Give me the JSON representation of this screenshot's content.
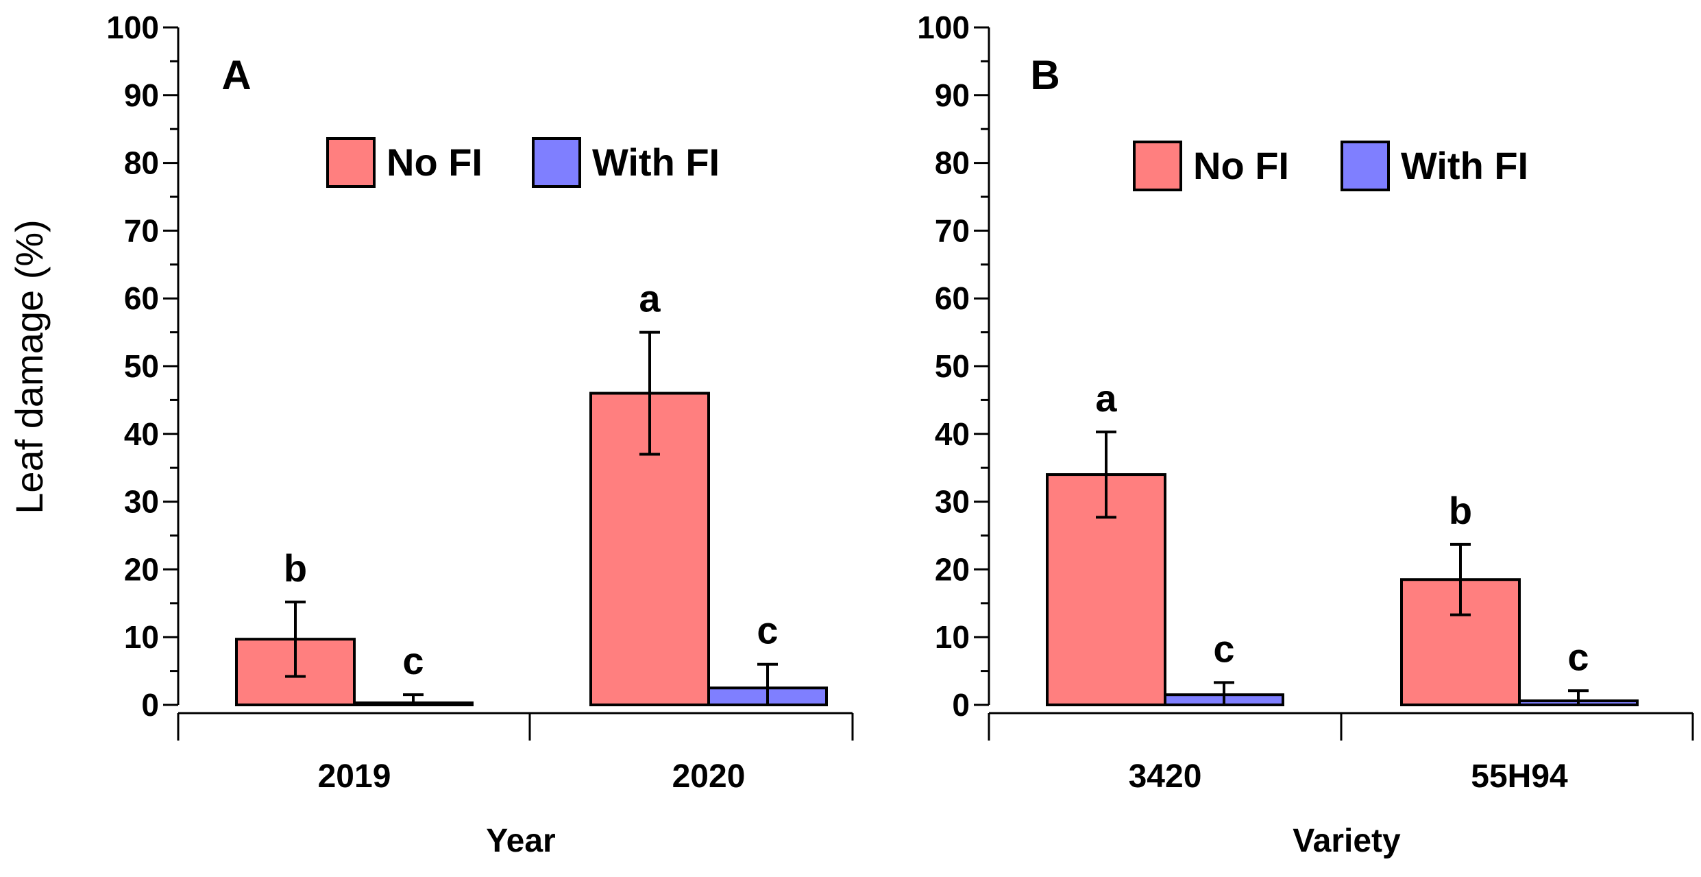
{
  "y_axis_label": "Leaf damage (%)",
  "chart_data": [
    {
      "type": "bar",
      "panel": "A",
      "title": "",
      "xlabel": "Year",
      "ylabel": "Leaf damage (%)",
      "ylim": [
        0,
        100
      ],
      "y_ticks": [
        0,
        10,
        20,
        30,
        40,
        50,
        60,
        70,
        80,
        90,
        100
      ],
      "categories": [
        "2019",
        "2020"
      ],
      "legend_position": "top-center",
      "series": [
        {
          "name": "No FI",
          "color": "#ff7f7f",
          "values": [
            9.7,
            46
          ],
          "error": [
            5.5,
            9
          ],
          "labels": [
            "b",
            "a"
          ]
        },
        {
          "name": "With FI",
          "color": "#7f7fff",
          "values": [
            0.3,
            2.5
          ],
          "error": [
            1.2,
            3.5
          ],
          "labels": [
            "c",
            "c"
          ]
        }
      ]
    },
    {
      "type": "bar",
      "panel": "B",
      "title": "",
      "xlabel": "Variety",
      "ylabel": "Leaf damage (%)",
      "ylim": [
        0,
        100
      ],
      "y_ticks": [
        0,
        10,
        20,
        30,
        40,
        50,
        60,
        70,
        80,
        90,
        100
      ],
      "categories": [
        "3420",
        "55H94"
      ],
      "legend_position": "top-center",
      "series": [
        {
          "name": "No FI",
          "color": "#ff7f7f",
          "values": [
            34,
            18.5
          ],
          "error": [
            6.3,
            5.2
          ],
          "labels": [
            "a",
            "b"
          ]
        },
        {
          "name": "With FI",
          "color": "#7f7fff",
          "values": [
            1.5,
            0.6
          ],
          "error": [
            1.8,
            1.5
          ],
          "labels": [
            "c",
            "c"
          ]
        }
      ]
    }
  ]
}
